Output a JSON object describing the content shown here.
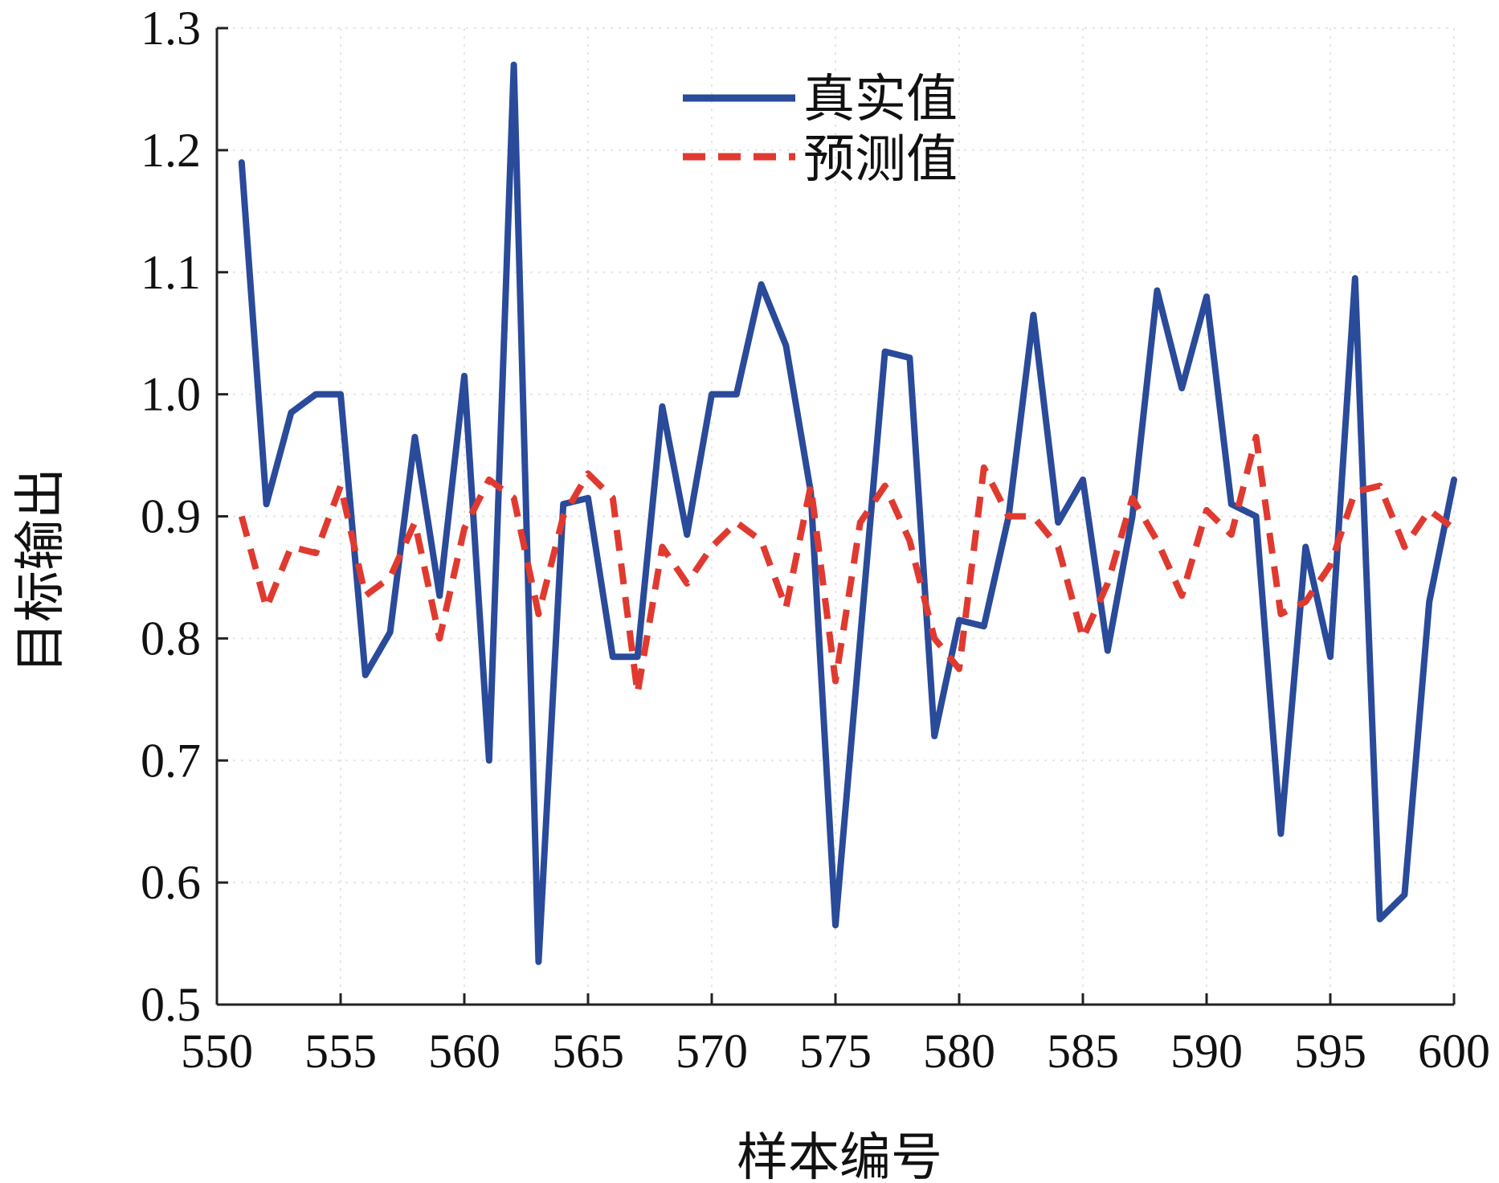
{
  "chart_data": {
    "type": "line",
    "title": "",
    "xlabel": "样本编号",
    "ylabel": "目标输出",
    "xlim": [
      550,
      600
    ],
    "ylim": [
      0.5,
      1.3
    ],
    "xticks": [
      550,
      555,
      560,
      565,
      570,
      575,
      580,
      585,
      590,
      595,
      600
    ],
    "yticks": [
      "0.5",
      "0.6",
      "0.7",
      "0.8",
      "0.9",
      "1.0",
      "1.1",
      "1.2",
      "1.3"
    ],
    "grid": "faint dotted",
    "legend": "top-center",
    "x": [
      551,
      552,
      553,
      554,
      555,
      556,
      557,
      558,
      559,
      560,
      561,
      562,
      563,
      564,
      565,
      566,
      567,
      568,
      569,
      570,
      571,
      572,
      573,
      574,
      575,
      576,
      577,
      578,
      579,
      580,
      581,
      582,
      583,
      584,
      585,
      586,
      587,
      588,
      589,
      590,
      591,
      592,
      593,
      594,
      595,
      596,
      597,
      598,
      599,
      600
    ],
    "series": [
      {
        "name": "真实值",
        "color": "#2a4a9a",
        "style": "solid",
        "values": [
          1.19,
          0.91,
          0.985,
          1.0,
          1.0,
          0.77,
          0.805,
          0.965,
          0.835,
          1.015,
          0.7,
          1.27,
          0.535,
          0.91,
          0.915,
          0.785,
          0.785,
          0.99,
          0.885,
          1.0,
          1.0,
          1.09,
          1.04,
          0.92,
          0.565,
          0.8,
          1.035,
          1.03,
          0.72,
          0.815,
          0.81,
          0.9,
          1.065,
          0.895,
          0.93,
          0.79,
          0.9,
          1.085,
          1.005,
          1.08,
          0.91,
          0.9,
          0.64,
          0.875,
          0.785,
          1.095,
          0.57,
          0.59,
          0.83,
          0.93
        ]
      },
      {
        "name": "预测值",
        "color": "#e03a30",
        "style": "dashed",
        "values": [
          0.9,
          0.825,
          0.875,
          0.87,
          0.925,
          0.835,
          0.85,
          0.895,
          0.8,
          0.89,
          0.93,
          0.915,
          0.82,
          0.9,
          0.935,
          0.915,
          0.755,
          0.875,
          0.845,
          0.875,
          0.895,
          0.88,
          0.825,
          0.925,
          0.765,
          0.895,
          0.925,
          0.88,
          0.8,
          0.775,
          0.94,
          0.9,
          0.9,
          0.875,
          0.8,
          0.845,
          0.915,
          0.88,
          0.835,
          0.905,
          0.885,
          0.965,
          0.82,
          0.83,
          0.86,
          0.92,
          0.925,
          0.875,
          0.905,
          0.89
        ]
      }
    ]
  }
}
